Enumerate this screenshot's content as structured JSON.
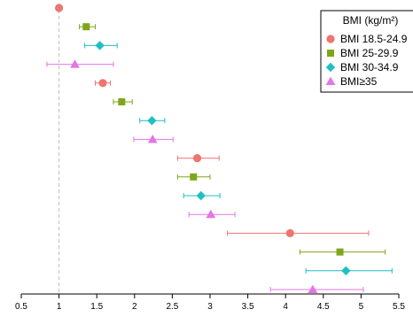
{
  "chart_data": {
    "type": "scatter",
    "subtype": "forest-plot",
    "title": "",
    "xlabel": "",
    "ylabel": "",
    "xlim": [
      0.5,
      5.5
    ],
    "x_ticks": [
      "0.5",
      "1",
      "1.5",
      "2",
      "2.5",
      "3",
      "3.5",
      "4",
      "4.5",
      "5",
      "5.5"
    ],
    "reference_line_x": 1,
    "grid": false,
    "legend": {
      "title": "BMI (kg/m²)",
      "placement": "top-right"
    },
    "series": [
      {
        "name": "BMI 18.5-24.9",
        "color": "#f07470",
        "marker": "circle",
        "points": [
          {
            "row": 0,
            "x": 1.0,
            "lo": 1.0,
            "hi": 1.0
          },
          {
            "row": 4,
            "x": 1.58,
            "lo": 1.48,
            "hi": 1.68
          },
          {
            "row": 8,
            "x": 2.83,
            "lo": 2.57,
            "hi": 3.12
          },
          {
            "row": 12,
            "x": 4.06,
            "lo": 3.23,
            "hi": 5.1
          }
        ]
      },
      {
        "name": "BMI 25-29.9",
        "color": "#7fa61a",
        "marker": "square",
        "points": [
          {
            "row": 1,
            "x": 1.36,
            "lo": 1.27,
            "hi": 1.48
          },
          {
            "row": 5,
            "x": 1.83,
            "lo": 1.72,
            "hi": 1.97
          },
          {
            "row": 9,
            "x": 2.78,
            "lo": 2.57,
            "hi": 3.0
          },
          {
            "row": 13,
            "x": 4.72,
            "lo": 4.19,
            "hi": 5.32
          }
        ]
      },
      {
        "name": "BMI 30-34.9",
        "color": "#1fbfc4",
        "marker": "diamond",
        "points": [
          {
            "row": 2,
            "x": 1.54,
            "lo": 1.34,
            "hi": 1.77
          },
          {
            "row": 6,
            "x": 2.23,
            "lo": 2.07,
            "hi": 2.4
          },
          {
            "row": 10,
            "x": 2.88,
            "lo": 2.65,
            "hi": 3.13
          },
          {
            "row": 14,
            "x": 4.8,
            "lo": 4.27,
            "hi": 5.41
          }
        ]
      },
      {
        "name": "BMI≥35",
        "color": "#e475e6",
        "marker": "triangle",
        "points": [
          {
            "row": 3,
            "x": 1.21,
            "lo": 0.84,
            "hi": 1.72
          },
          {
            "row": 7,
            "x": 2.24,
            "lo": 1.99,
            "hi": 2.51
          },
          {
            "row": 11,
            "x": 3.01,
            "lo": 2.72,
            "hi": 3.33
          },
          {
            "row": 15,
            "x": 4.36,
            "lo": 3.8,
            "hi": 5.03
          }
        ]
      }
    ]
  }
}
